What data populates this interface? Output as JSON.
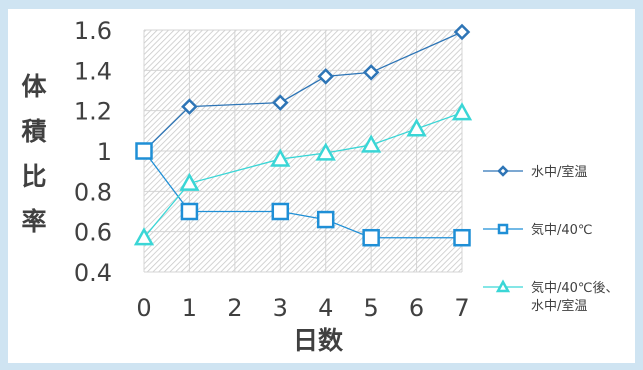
{
  "chart_data": {
    "type": "line",
    "xlabel": "日数",
    "ylabel": "体積比率",
    "xlim": [
      0,
      7
    ],
    "ylim": [
      0.4,
      1.6
    ],
    "x_ticks": [
      "0",
      "1",
      "2",
      "3",
      "4",
      "5",
      "6",
      "7"
    ],
    "y_ticks": [
      "1.6",
      "1.4",
      "1.2",
      "1",
      "0.8",
      "0.6",
      "0.4"
    ],
    "grid": true,
    "legend_position": "right",
    "series": [
      {
        "name": "水中/室温",
        "color": "#2e75b6",
        "marker": "diamond",
        "x": [
          0,
          1,
          3,
          4,
          5,
          7
        ],
        "y": [
          1.0,
          1.22,
          1.24,
          1.37,
          1.39,
          1.59
        ]
      },
      {
        "name": "気中/40℃",
        "color": "#1f8fd6",
        "marker": "square",
        "x": [
          0,
          1,
          3,
          4,
          5,
          7
        ],
        "y": [
          1.0,
          0.7,
          0.7,
          0.66,
          0.57,
          0.57
        ]
      },
      {
        "name": "気中/40℃後、\n水中/室温",
        "color": "#3ad6d6",
        "marker": "triangle",
        "x": [
          0,
          1,
          3,
          4,
          5,
          6,
          7
        ],
        "y": [
          0.57,
          0.84,
          0.96,
          0.99,
          1.03,
          1.11,
          1.19
        ]
      }
    ]
  }
}
